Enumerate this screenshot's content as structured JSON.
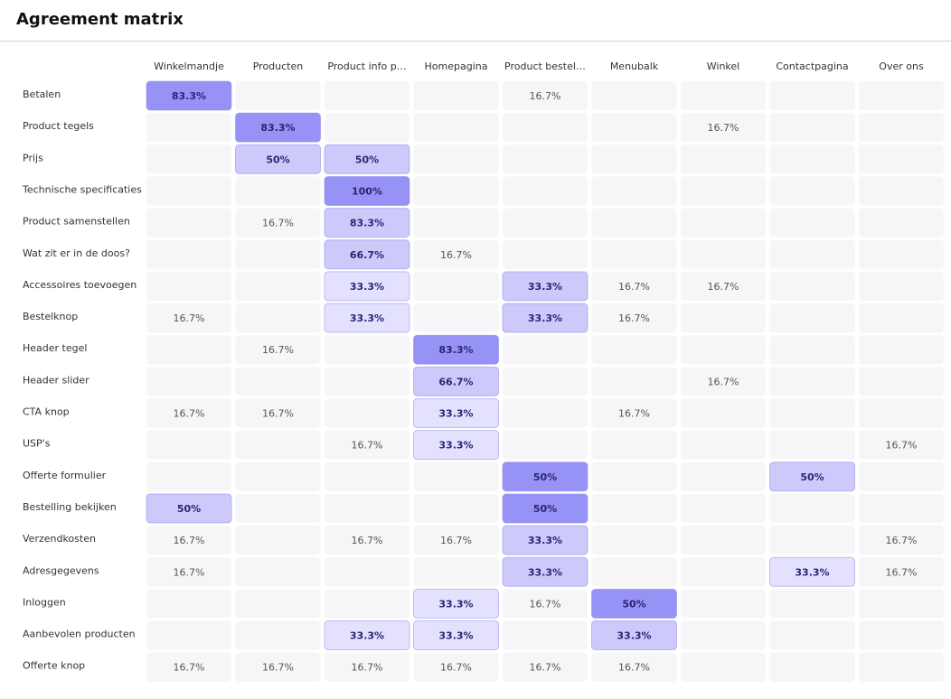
{
  "header": {
    "title": "Agreement matrix"
  },
  "chart_data": {
    "type": "heatmap",
    "x": [
      "Winkelmandje",
      "Producten",
      "Product info p…",
      "Homepagina",
      "Product bestel…",
      "Menubalk",
      "Winkel",
      "Contactpagina",
      "Over ons"
    ],
    "y": [
      "Betalen",
      "Product tegels",
      "Prijs",
      "Technische specificaties",
      "Product samenstellen",
      "Wat zit er in de doos?",
      "Accessoires toevoegen",
      "Bestelknop",
      "Header tegel",
      "Header slider",
      "CTA knop",
      "USP's",
      "Offerte formulier",
      "Bestelling bekijken",
      "Verzendkosten",
      "Adresgegevens",
      "Inloggen",
      "Aanbevolen producten",
      "Offerte knop"
    ],
    "values": [
      [
        83.3,
        null,
        null,
        null,
        16.7,
        null,
        null,
        null,
        null
      ],
      [
        null,
        83.3,
        null,
        null,
        null,
        null,
        16.7,
        null,
        null
      ],
      [
        null,
        50,
        50,
        null,
        null,
        null,
        null,
        null,
        null
      ],
      [
        null,
        null,
        100,
        null,
        null,
        null,
        null,
        null,
        null
      ],
      [
        null,
        16.7,
        83.3,
        null,
        null,
        null,
        null,
        null,
        null
      ],
      [
        null,
        null,
        66.7,
        16.7,
        null,
        null,
        null,
        null,
        null
      ],
      [
        null,
        null,
        33.3,
        null,
        33.3,
        16.7,
        16.7,
        null,
        null
      ],
      [
        16.7,
        null,
        33.3,
        null,
        33.3,
        16.7,
        null,
        null,
        null
      ],
      [
        null,
        16.7,
        null,
        83.3,
        null,
        null,
        null,
        null,
        null
      ],
      [
        null,
        null,
        null,
        66.7,
        null,
        null,
        16.7,
        null,
        null
      ],
      [
        16.7,
        16.7,
        null,
        33.3,
        null,
        16.7,
        null,
        null,
        null
      ],
      [
        null,
        null,
        16.7,
        33.3,
        null,
        null,
        null,
        null,
        16.7
      ],
      [
        null,
        null,
        null,
        null,
        50,
        null,
        null,
        50,
        null
      ],
      [
        50,
        null,
        null,
        null,
        50,
        null,
        null,
        null,
        null
      ],
      [
        16.7,
        null,
        16.7,
        16.7,
        33.3,
        null,
        null,
        null,
        16.7
      ],
      [
        16.7,
        null,
        null,
        null,
        33.3,
        null,
        null,
        33.3,
        16.7
      ],
      [
        null,
        null,
        null,
        33.3,
        16.7,
        50,
        null,
        null,
        null
      ],
      [
        null,
        null,
        33.3,
        33.3,
        null,
        33.3,
        null,
        null,
        null
      ],
      [
        16.7,
        16.7,
        16.7,
        16.7,
        16.7,
        16.7,
        null,
        null,
        null
      ]
    ],
    "value_labels": [
      [
        "83.3%",
        null,
        null,
        null,
        "16.7%",
        null,
        null,
        null,
        null
      ],
      [
        null,
        "83.3%",
        null,
        null,
        null,
        null,
        "16.7%",
        null,
        null
      ],
      [
        null,
        "50%",
        "50%",
        null,
        null,
        null,
        null,
        null,
        null
      ],
      [
        null,
        null,
        "100%",
        null,
        null,
        null,
        null,
        null,
        null
      ],
      [
        null,
        "16.7%",
        "83.3%",
        null,
        null,
        null,
        null,
        null,
        null
      ],
      [
        null,
        null,
        "66.7%",
        "16.7%",
        null,
        null,
        null,
        null,
        null
      ],
      [
        null,
        null,
        "33.3%",
        null,
        "33.3%",
        "16.7%",
        "16.7%",
        null,
        null
      ],
      [
        "16.7%",
        null,
        "33.3%",
        null,
        "33.3%",
        "16.7%",
        null,
        null,
        null
      ],
      [
        null,
        "16.7%",
        null,
        "83.3%",
        null,
        null,
        null,
        null,
        null
      ],
      [
        null,
        null,
        null,
        "66.7%",
        null,
        null,
        "16.7%",
        null,
        null
      ],
      [
        "16.7%",
        "16.7%",
        null,
        "33.3%",
        null,
        "16.7%",
        null,
        null,
        null
      ],
      [
        null,
        null,
        "16.7%",
        "33.3%",
        null,
        null,
        null,
        null,
        "16.7%"
      ],
      [
        null,
        null,
        null,
        null,
        "50%",
        null,
        null,
        "50%",
        null
      ],
      [
        "50%",
        null,
        null,
        null,
        "50%",
        null,
        null,
        null,
        null
      ],
      [
        "16.7%",
        null,
        "16.7%",
        "16.7%",
        "33.3%",
        null,
        null,
        null,
        "16.7%"
      ],
      [
        "16.7%",
        null,
        null,
        null,
        "33.3%",
        null,
        null,
        "33.3%",
        "16.7%"
      ],
      [
        null,
        null,
        null,
        "33.3%",
        "16.7%",
        "50%",
        null,
        null,
        null
      ],
      [
        null,
        null,
        "33.3%",
        "33.3%",
        null,
        "33.3%",
        null,
        null,
        null
      ],
      [
        "16.7%",
        "16.7%",
        "16.7%",
        "16.7%",
        "16.7%",
        "16.7%",
        null,
        null,
        null
      ]
    ],
    "cell_colors": [
      [
        "#9792f6",
        null,
        null,
        null,
        null,
        null,
        null,
        null,
        null
      ],
      [
        null,
        "#9792f6",
        null,
        null,
        null,
        null,
        null,
        null,
        null
      ],
      [
        null,
        "#cdc9fb",
        "#cdc9fb",
        null,
        null,
        null,
        null,
        null,
        null
      ],
      [
        null,
        null,
        "#9792f6",
        null,
        null,
        null,
        null,
        null,
        null
      ],
      [
        null,
        null,
        "#cdc9fb",
        null,
        null,
        null,
        null,
        null,
        null
      ],
      [
        null,
        null,
        "#cdc9fb",
        null,
        null,
        null,
        null,
        null,
        null
      ],
      [
        null,
        null,
        "#e3e1fd",
        null,
        "#cdc9fb",
        null,
        null,
        null,
        null
      ],
      [
        null,
        null,
        "#e3e1fd",
        null,
        "#cdc9fb",
        null,
        null,
        null,
        null
      ],
      [
        null,
        null,
        null,
        "#9792f6",
        null,
        null,
        null,
        null,
        null
      ],
      [
        null,
        null,
        null,
        "#cdc9fb",
        null,
        null,
        null,
        null,
        null
      ],
      [
        null,
        null,
        null,
        "#e3e1fd",
        null,
        null,
        null,
        null,
        null
      ],
      [
        null,
        null,
        null,
        "#e3e1fd",
        null,
        null,
        null,
        null,
        null
      ],
      [
        null,
        null,
        null,
        null,
        "#9792f6",
        null,
        null,
        "#cdc9fb",
        null
      ],
      [
        "#cdc9fb",
        null,
        null,
        null,
        "#9792f6",
        null,
        null,
        null,
        null
      ],
      [
        null,
        null,
        null,
        null,
        "#cdc9fb",
        null,
        null,
        null,
        null
      ],
      [
        null,
        null,
        null,
        null,
        "#cdc9fb",
        null,
        null,
        "#e3e1fd",
        null
      ],
      [
        null,
        null,
        null,
        "#e3e1fd",
        null,
        "#9792f6",
        null,
        null,
        null
      ],
      [
        null,
        null,
        "#e3e1fd",
        "#e3e1fd",
        null,
        "#cdc9fb",
        null,
        null,
        null
      ],
      [
        null,
        null,
        null,
        null,
        null,
        null,
        null,
        null,
        null
      ]
    ]
  }
}
